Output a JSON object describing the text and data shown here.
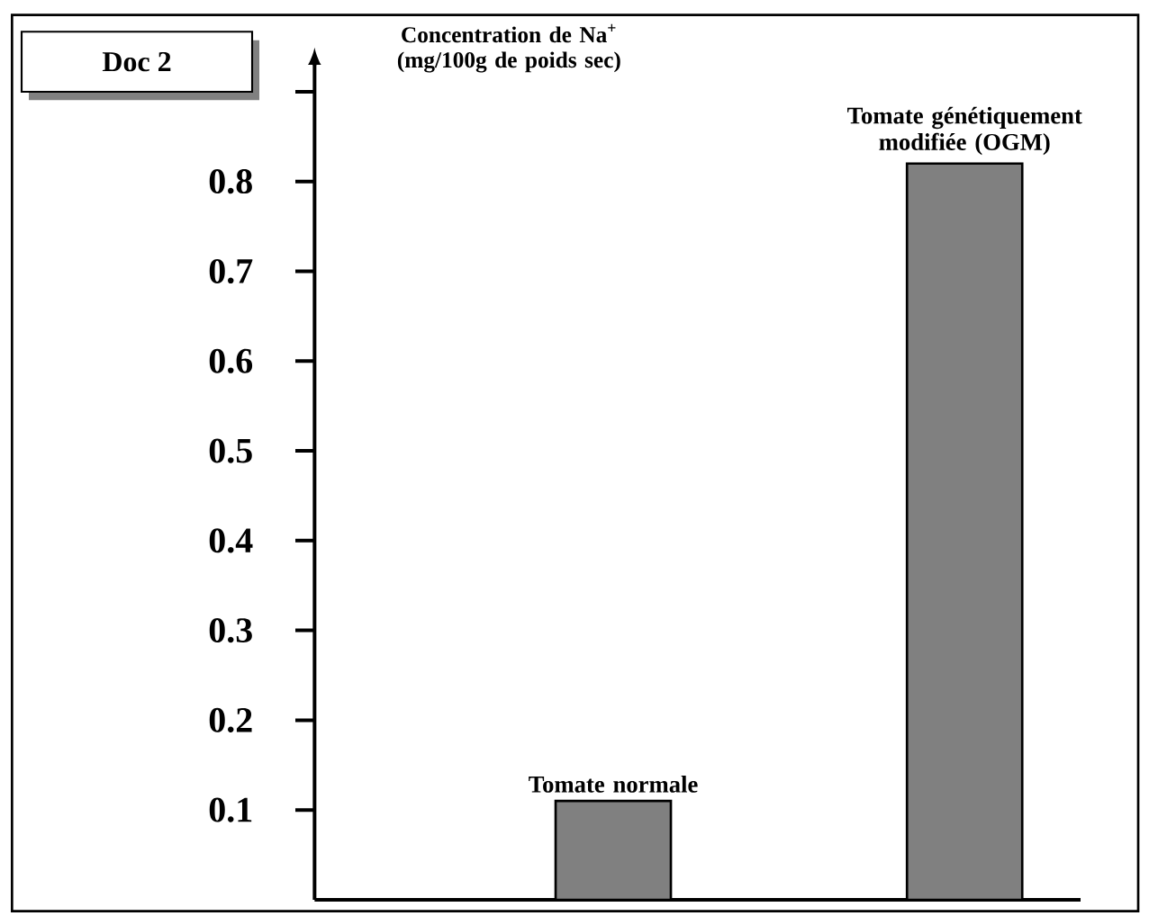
{
  "chart_data": {
    "type": "bar",
    "ylabel": "Concentration de Na$^{+}$ (mg/100g de poids sec)",
    "categories": [
      "Tomate normale",
      "Tomate génétiquement modifiée (OGM)"
    ],
    "values": [
      0.11,
      0.82
    ],
    "color": "#808080",
    "ylim": [
      0,
      0.93
    ],
    "yticks": [
      0.1,
      0.2,
      0.3,
      0.4,
      0.5,
      0.6,
      0.7,
      0.8,
      {
        "value": 0.9,
        "label": null
      }
    ],
    "annotations": [
      "Doc 2"
    ],
    "grid": false
  }
}
